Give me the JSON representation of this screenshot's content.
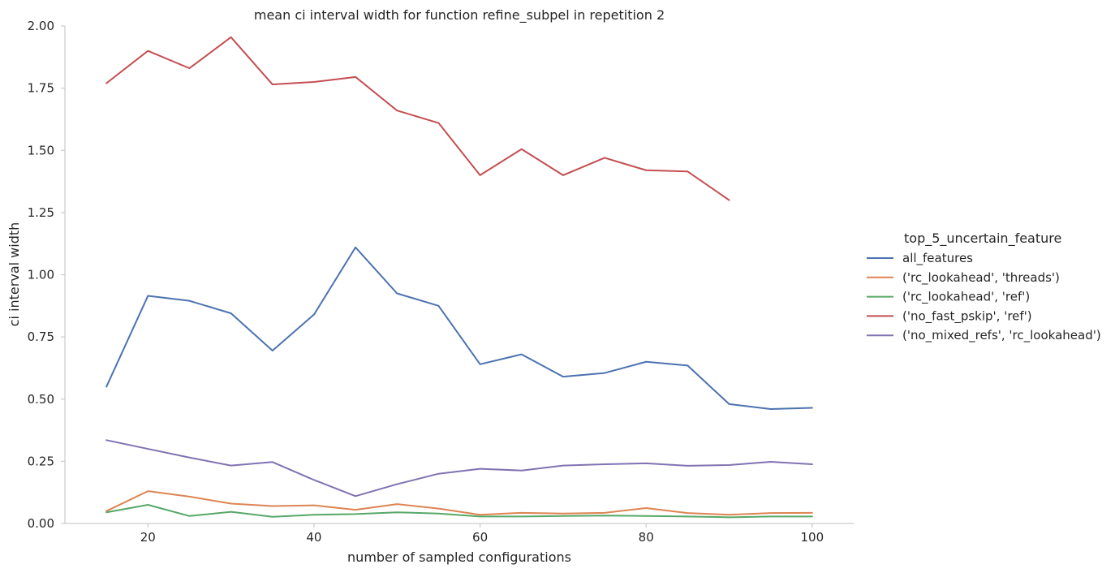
{
  "chart_data": {
    "type": "line",
    "title": "mean ci interval width for function refine_subpel in repetition 2",
    "xlabel": "number of sampled configurations",
    "ylabel": "ci interval width",
    "xlim": [
      10,
      105
    ],
    "ylim": [
      0,
      2
    ],
    "x_ticks": [
      20,
      40,
      60,
      80,
      100
    ],
    "y_ticks": [
      0,
      0.25,
      0.5,
      0.75,
      1.0,
      1.25,
      1.5,
      1.75,
      2.0
    ],
    "y_tick_labels": [
      "0.00",
      "0.25",
      "0.50",
      "0.75",
      "1.00",
      "1.25",
      "1.50",
      "1.75",
      "2.00"
    ],
    "grid": false,
    "legend_title": "top_5_uncertain_feature",
    "legend_position": "right",
    "series": [
      {
        "name": "all_features",
        "color": "#4c72b0",
        "x": [
          15,
          20,
          25,
          30,
          35,
          40,
          45,
          50,
          55,
          60,
          65,
          70,
          75,
          80,
          85,
          90,
          95,
          100
        ],
        "values": [
          0.55,
          0.915,
          0.895,
          0.845,
          0.695,
          0.84,
          1.11,
          0.925,
          0.875,
          0.64,
          0.68,
          0.59,
          0.605,
          0.65,
          0.635,
          0.48,
          0.46,
          0.465
        ]
      },
      {
        "name": "('rc_lookahead', 'threads')",
        "color": "#dd8452",
        "x": [
          15,
          20,
          25,
          30,
          35,
          40,
          45,
          50,
          55,
          60,
          65,
          70,
          75,
          80,
          85,
          90,
          95,
          100
        ],
        "values": [
          0.05,
          0.13,
          0.108,
          0.08,
          0.07,
          0.073,
          0.055,
          0.078,
          0.06,
          0.035,
          0.043,
          0.04,
          0.043,
          0.062,
          0.042,
          0.035,
          0.042,
          0.043
        ]
      },
      {
        "name": "('rc_lookahead', 'ref')",
        "color": "#55a868",
        "x": [
          15,
          20,
          25,
          30,
          35,
          40,
          45,
          50,
          55,
          60,
          65,
          70,
          75,
          80,
          85,
          90,
          95,
          100
        ],
        "values": [
          0.045,
          0.075,
          0.03,
          0.047,
          0.027,
          0.035,
          0.038,
          0.045,
          0.04,
          0.028,
          0.028,
          0.03,
          0.032,
          0.03,
          0.028,
          0.025,
          0.028,
          0.028
        ]
      },
      {
        "name": "('no_fast_pskip', 'ref')",
        "color": "#c44e52",
        "x": [
          15,
          20,
          25,
          30,
          35,
          40,
          45,
          50,
          55,
          60,
          65,
          70,
          75,
          80,
          85,
          90
        ],
        "values": [
          1.77,
          1.9,
          1.83,
          1.955,
          1.765,
          1.775,
          1.795,
          1.66,
          1.61,
          1.4,
          1.505,
          1.4,
          1.47,
          1.42,
          1.415,
          1.3
        ]
      },
      {
        "name": "('no_mixed_refs', 'rc_lookahead')",
        "color": "#8172b3",
        "x": [
          15,
          20,
          25,
          30,
          35,
          40,
          45,
          50,
          55,
          60,
          65,
          70,
          75,
          80,
          85,
          90,
          95,
          100
        ],
        "values": [
          0.335,
          0.3,
          0.265,
          0.233,
          0.247,
          0.175,
          0.11,
          0.158,
          0.2,
          0.22,
          0.213,
          0.233,
          0.238,
          0.242,
          0.232,
          0.235,
          0.248,
          0.238
        ]
      }
    ]
  }
}
